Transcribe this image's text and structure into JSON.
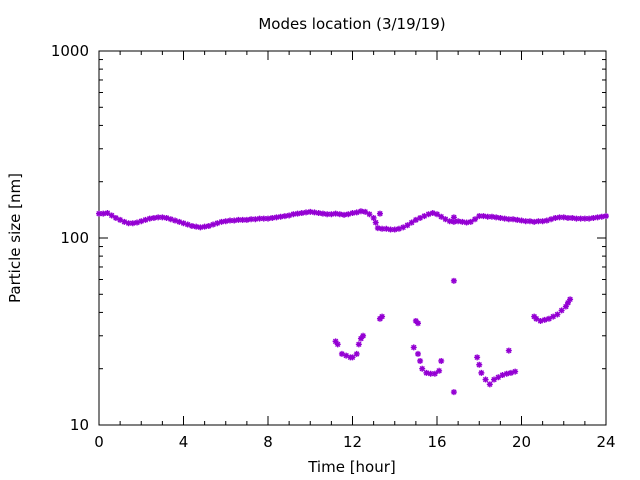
{
  "chart_data": {
    "type": "scatter",
    "title": "Modes location (3/19/19)",
    "xlabel": "Time [hour]",
    "ylabel": "Particle size [nm]",
    "xlim": [
      0,
      24
    ],
    "ylim": [
      10,
      1000
    ],
    "yscale": "log",
    "grid": false,
    "legend": "none",
    "xticks": [
      0,
      4,
      8,
      12,
      16,
      20,
      24
    ],
    "xtick_labels": [
      "0",
      "4",
      "8",
      "12",
      "16",
      "20",
      "24"
    ],
    "yticks": [
      10,
      100,
      1000
    ],
    "ytick_labels": [
      "10",
      "100",
      "1000"
    ],
    "marker_color": "#9400d3",
    "series": [
      {
        "values": [
          [
            0.0,
            135
          ],
          [
            0.2,
            135
          ],
          [
            0.4,
            136
          ],
          [
            0.6,
            132
          ],
          [
            0.8,
            128
          ],
          [
            1.0,
            125
          ],
          [
            1.2,
            122
          ],
          [
            1.4,
            120
          ],
          [
            1.6,
            120
          ],
          [
            1.8,
            121
          ],
          [
            2.0,
            123
          ],
          [
            2.2,
            125
          ],
          [
            2.4,
            127
          ],
          [
            2.6,
            128
          ],
          [
            2.8,
            129
          ],
          [
            3.0,
            129
          ],
          [
            3.2,
            128
          ],
          [
            3.4,
            126
          ],
          [
            3.6,
            124
          ],
          [
            3.8,
            122
          ],
          [
            4.0,
            120
          ],
          [
            4.2,
            118
          ],
          [
            4.4,
            116
          ],
          [
            4.6,
            115
          ],
          [
            4.8,
            114
          ],
          [
            5.0,
            115
          ],
          [
            5.2,
            116
          ],
          [
            5.4,
            118
          ],
          [
            5.6,
            120
          ],
          [
            5.8,
            122
          ],
          [
            6.0,
            123
          ],
          [
            6.2,
            124
          ],
          [
            6.4,
            124
          ],
          [
            6.6,
            125
          ],
          [
            6.8,
            125
          ],
          [
            7.0,
            125
          ],
          [
            7.2,
            126
          ],
          [
            7.4,
            126
          ],
          [
            7.6,
            127
          ],
          [
            7.8,
            127
          ],
          [
            8.0,
            127
          ],
          [
            8.2,
            128
          ],
          [
            8.4,
            129
          ],
          [
            8.6,
            130
          ],
          [
            8.8,
            131
          ],
          [
            9.0,
            132
          ],
          [
            9.2,
            134
          ],
          [
            9.4,
            135
          ],
          [
            9.6,
            136
          ],
          [
            9.8,
            137
          ],
          [
            10.0,
            138
          ],
          [
            10.2,
            137
          ],
          [
            10.4,
            136
          ],
          [
            10.6,
            135
          ],
          [
            10.8,
            134
          ],
          [
            11.0,
            134
          ],
          [
            11.2,
            135
          ],
          [
            11.4,
            134
          ],
          [
            11.6,
            133
          ],
          [
            11.8,
            134
          ],
          [
            12.0,
            136
          ],
          [
            12.2,
            137
          ],
          [
            12.4,
            139
          ],
          [
            12.6,
            138
          ],
          [
            12.8,
            134
          ],
          [
            13.0,
            128
          ],
          [
            13.1,
            121
          ],
          [
            13.2,
            113
          ],
          [
            13.4,
            112
          ],
          [
            13.6,
            112
          ],
          [
            13.8,
            111
          ],
          [
            14.0,
            111
          ],
          [
            14.2,
            112
          ],
          [
            14.4,
            114
          ],
          [
            14.6,
            117
          ],
          [
            14.8,
            121
          ],
          [
            15.0,
            125
          ],
          [
            15.2,
            128
          ],
          [
            15.4,
            131
          ],
          [
            15.6,
            134
          ],
          [
            15.8,
            136
          ],
          [
            16.0,
            134
          ],
          [
            16.2,
            130
          ],
          [
            16.4,
            126
          ],
          [
            16.6,
            123
          ],
          [
            16.8,
            122
          ],
          [
            17.0,
            123
          ],
          [
            17.2,
            122
          ],
          [
            17.4,
            121
          ],
          [
            17.6,
            122
          ],
          [
            17.8,
            126
          ],
          [
            18.0,
            131
          ],
          [
            18.2,
            131
          ],
          [
            18.4,
            130
          ],
          [
            18.6,
            130
          ],
          [
            18.8,
            129
          ],
          [
            19.0,
            128
          ],
          [
            19.2,
            127
          ],
          [
            19.4,
            126
          ],
          [
            19.6,
            126
          ],
          [
            19.8,
            125
          ],
          [
            20.0,
            124
          ],
          [
            20.2,
            123
          ],
          [
            20.4,
            123
          ],
          [
            20.6,
            122
          ],
          [
            20.8,
            123
          ],
          [
            21.0,
            123
          ],
          [
            21.2,
            124
          ],
          [
            21.4,
            126
          ],
          [
            21.6,
            128
          ],
          [
            21.8,
            129
          ],
          [
            22.0,
            129
          ],
          [
            22.2,
            128
          ],
          [
            22.4,
            128
          ],
          [
            22.6,
            127
          ],
          [
            22.8,
            127
          ],
          [
            23.0,
            127
          ],
          [
            23.2,
            127
          ],
          [
            23.4,
            128
          ],
          [
            23.6,
            129
          ],
          [
            23.8,
            130
          ],
          [
            24.0,
            131
          ],
          [
            13.3,
            135
          ],
          [
            16.8,
            129
          ],
          [
            11.2,
            28
          ],
          [
            11.3,
            27
          ],
          [
            11.5,
            24
          ],
          [
            11.7,
            23.5
          ],
          [
            11.9,
            23
          ],
          [
            12.0,
            23
          ],
          [
            12.2,
            24
          ],
          [
            12.3,
            27
          ],
          [
            12.4,
            29
          ],
          [
            12.5,
            30
          ],
          [
            13.3,
            37
          ],
          [
            13.4,
            38
          ],
          [
            14.9,
            26
          ],
          [
            15.0,
            36
          ],
          [
            15.1,
            35
          ],
          [
            15.1,
            24
          ],
          [
            15.2,
            22
          ],
          [
            15.3,
            20
          ],
          [
            15.5,
            19
          ],
          [
            15.7,
            18.8
          ],
          [
            15.9,
            18.8
          ],
          [
            16.1,
            19.5
          ],
          [
            16.2,
            22
          ],
          [
            16.8,
            59
          ],
          [
            16.8,
            15
          ],
          [
            17.9,
            23
          ],
          [
            18.0,
            21
          ],
          [
            18.1,
            19
          ],
          [
            18.3,
            17.5
          ],
          [
            18.5,
            16.5
          ],
          [
            18.7,
            17.5
          ],
          [
            18.9,
            18
          ],
          [
            19.1,
            18.5
          ],
          [
            19.3,
            18.8
          ],
          [
            19.4,
            25
          ],
          [
            19.5,
            19
          ],
          [
            19.7,
            19.3
          ],
          [
            20.6,
            38
          ],
          [
            20.7,
            37
          ],
          [
            20.9,
            36
          ],
          [
            21.1,
            36.5
          ],
          [
            21.3,
            37
          ],
          [
            21.5,
            38
          ],
          [
            21.7,
            39
          ],
          [
            21.9,
            41
          ],
          [
            22.1,
            43
          ],
          [
            22.2,
            45
          ],
          [
            22.3,
            47
          ]
        ]
      }
    ]
  }
}
